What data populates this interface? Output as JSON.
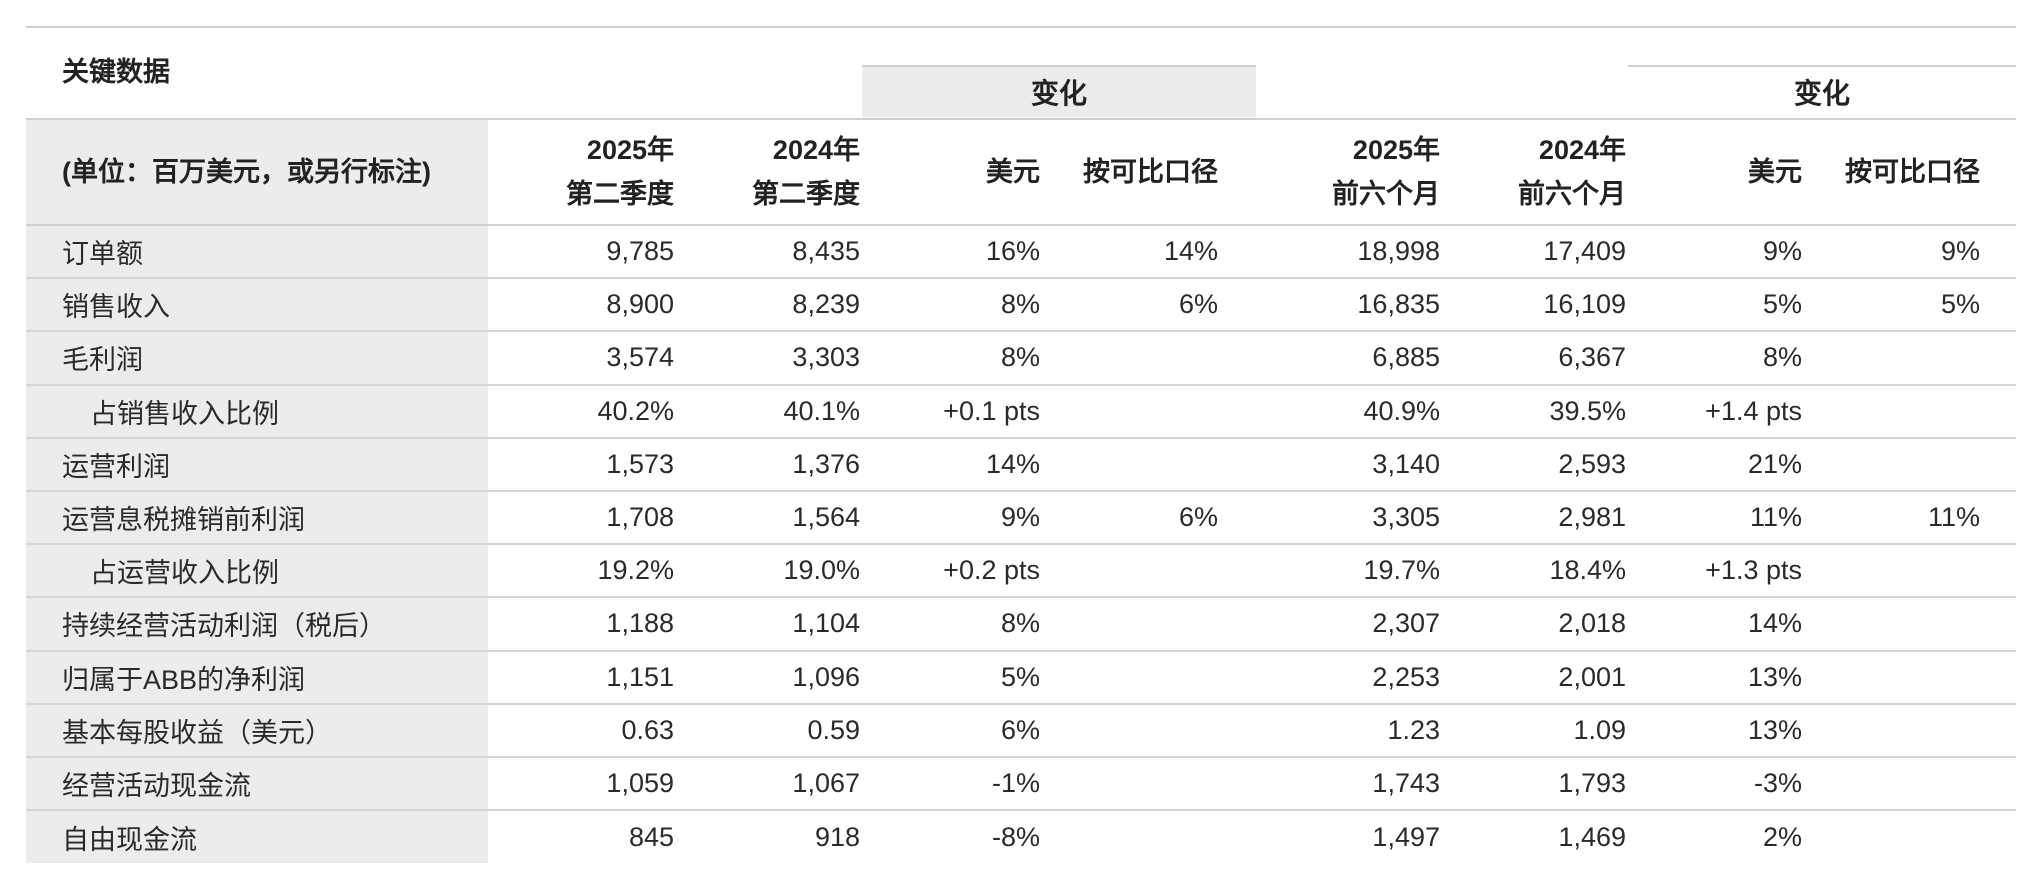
{
  "title": "关键数据",
  "groups": {
    "quarter_change": "变化",
    "halfyear_change": "变化"
  },
  "headers": {
    "unit": "(单位：百万美元，或另行标注)",
    "q2_2025_line1": "2025年",
    "q2_2025_line2": "第二季度",
    "q2_2024_line1": "2024年",
    "q2_2024_line2": "第二季度",
    "usd_1": "美元",
    "comparable_1": "按可比口径",
    "h1_2025_line1": "2025年",
    "h1_2025_line2": "前六个月",
    "h1_2024_line1": "2024年",
    "h1_2024_line2": "前六个月",
    "usd_2": "美元",
    "comparable_2": "按可比口径"
  },
  "rows": [
    {
      "label": "订单额",
      "indent": false,
      "cells": [
        "9,785",
        "8,435",
        "16%",
        "14%",
        "18,998",
        "17,409",
        "9%",
        "9%"
      ]
    },
    {
      "label": "销售收入",
      "indent": false,
      "cells": [
        "8,900",
        "8,239",
        "8%",
        "6%",
        "16,835",
        "16,109",
        "5%",
        "5%"
      ]
    },
    {
      "label": "毛利润",
      "indent": false,
      "cells": [
        "3,574",
        "3,303",
        "8%",
        "",
        "6,885",
        "6,367",
        "8%",
        ""
      ]
    },
    {
      "label": "占销售收入比例",
      "indent": true,
      "cells": [
        "40.2%",
        "40.1%",
        "+0.1 pts",
        "",
        "40.9%",
        "39.5%",
        "+1.4 pts",
        ""
      ]
    },
    {
      "label": "运营利润",
      "indent": false,
      "cells": [
        "1,573",
        "1,376",
        "14%",
        "",
        "3,140",
        "2,593",
        "21%",
        ""
      ]
    },
    {
      "label": "运营息税摊销前利润",
      "indent": false,
      "cells": [
        "1,708",
        "1,564",
        "9%",
        "6%",
        "3,305",
        "2,981",
        "11%",
        "11%"
      ]
    },
    {
      "label": "占运营收入比例",
      "indent": true,
      "cells": [
        "19.2%",
        "19.0%",
        "+0.2 pts",
        "",
        "19.7%",
        "18.4%",
        "+1.3 pts",
        ""
      ]
    },
    {
      "label": "持续经营活动利润（税后）",
      "indent": false,
      "cells": [
        "1,188",
        "1,104",
        "8%",
        "",
        "2,307",
        "2,018",
        "14%",
        ""
      ]
    },
    {
      "label": "归属于ABB的净利润",
      "indent": false,
      "cells": [
        "1,151",
        "1,096",
        "5%",
        "",
        "2,253",
        "2,001",
        "13%",
        ""
      ]
    },
    {
      "label": "基本每股收益（美元）",
      "indent": false,
      "cells": [
        "0.63",
        "0.59",
        "6%",
        "",
        "1.23",
        "1.09",
        "13%",
        ""
      ]
    },
    {
      "label": "经营活动现金流",
      "indent": false,
      "cells": [
        "1,059",
        "1,067",
        "-1%",
        "",
        "1,743",
        "1,793",
        "-3%",
        ""
      ]
    },
    {
      "label": "自由现金流",
      "indent": false,
      "cells": [
        "845",
        "918",
        "-8%",
        "",
        "1,497",
        "1,469",
        "2%",
        ""
      ]
    }
  ]
}
